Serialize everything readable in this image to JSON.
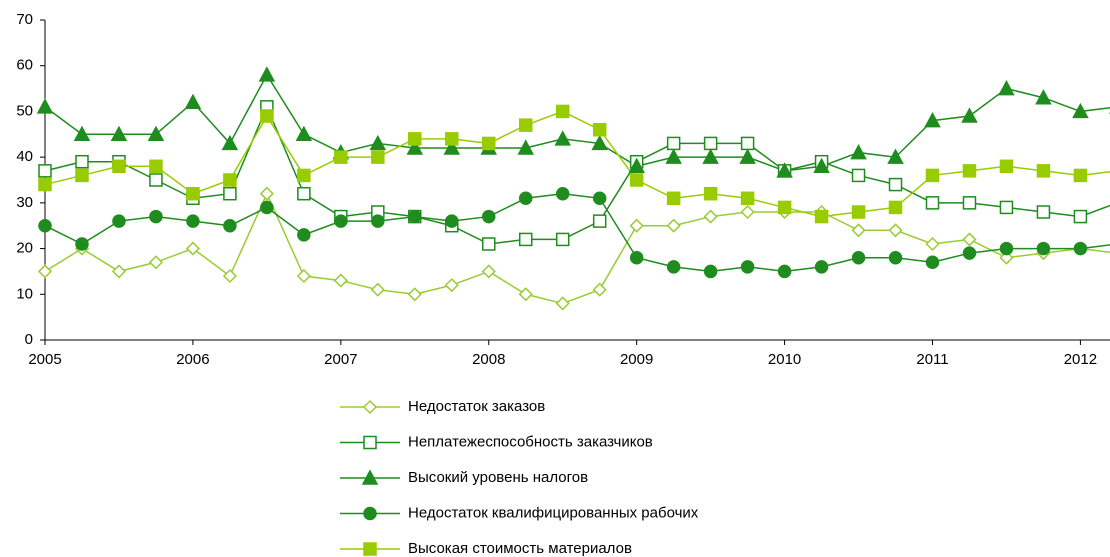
{
  "chart_data": {
    "type": "line",
    "x": [
      2005,
      2005.25,
      2005.5,
      2005.75,
      2006,
      2006.25,
      2006.5,
      2006.75,
      2007,
      2007.25,
      2007.5,
      2007.75,
      2008,
      2008.25,
      2008.5,
      2008.75,
      2009,
      2009.25,
      2009.5,
      2009.75,
      2010,
      2010.25,
      2010.5,
      2010.75,
      2011,
      2011.25,
      2011.5,
      2011.75,
      2012,
      2012.25
    ],
    "xlim": [
      2005,
      2012.2
    ],
    "xticks": [
      2005,
      2006,
      2007,
      2008,
      2009,
      2010,
      2011,
      2012
    ],
    "ylim": [
      0,
      70
    ],
    "yticks": [
      0,
      10,
      20,
      30,
      40,
      50,
      60,
      70
    ],
    "series": [
      {
        "name": "Недостаток заказов",
        "color": "#99cc33",
        "marker": "diamond-open",
        "values": [
          15,
          20,
          15,
          17,
          20,
          14,
          32,
          14,
          13,
          11,
          10,
          12,
          15,
          10,
          8,
          11,
          25,
          25,
          27,
          28,
          28,
          28,
          24,
          24,
          21,
          22,
          18,
          19,
          20,
          19
        ]
      },
      {
        "name": "Неплатежеспособность заказчиков",
        "color": "#1e8c1e",
        "marker": "square-open",
        "values": [
          37,
          39,
          39,
          35,
          31,
          32,
          51,
          32,
          27,
          28,
          27,
          25,
          21,
          22,
          22,
          26,
          39,
          43,
          43,
          43,
          37,
          39,
          36,
          34,
          30,
          30,
          29,
          28,
          27,
          30
        ]
      },
      {
        "name": "Высокий уровень налогов",
        "color": "#1e8c1e",
        "marker": "triangle",
        "values": [
          51,
          45,
          45,
          45,
          52,
          43,
          58,
          45,
          41,
          43,
          42,
          42,
          42,
          42,
          44,
          43,
          38,
          40,
          40,
          40,
          37,
          38,
          41,
          40,
          48,
          49,
          55,
          53,
          50,
          51
        ]
      },
      {
        "name": "Недостаток квалифицированных рабочих",
        "color": "#1e8c1e",
        "marker": "circle",
        "values": [
          25,
          21,
          26,
          27,
          26,
          25,
          29,
          23,
          26,
          26,
          27,
          26,
          27,
          31,
          32,
          31,
          18,
          16,
          15,
          16,
          15,
          16,
          18,
          18,
          17,
          19,
          20,
          20,
          20,
          21
        ]
      },
      {
        "name": "Высокая стоимость материалов",
        "color": "#99cc00",
        "marker": "square",
        "values": [
          34,
          36,
          38,
          38,
          32,
          35,
          49,
          36,
          40,
          40,
          44,
          44,
          43,
          47,
          50,
          46,
          35,
          31,
          32,
          31,
          29,
          27,
          28,
          29,
          36,
          37,
          38,
          37,
          36,
          37
        ]
      }
    ]
  }
}
